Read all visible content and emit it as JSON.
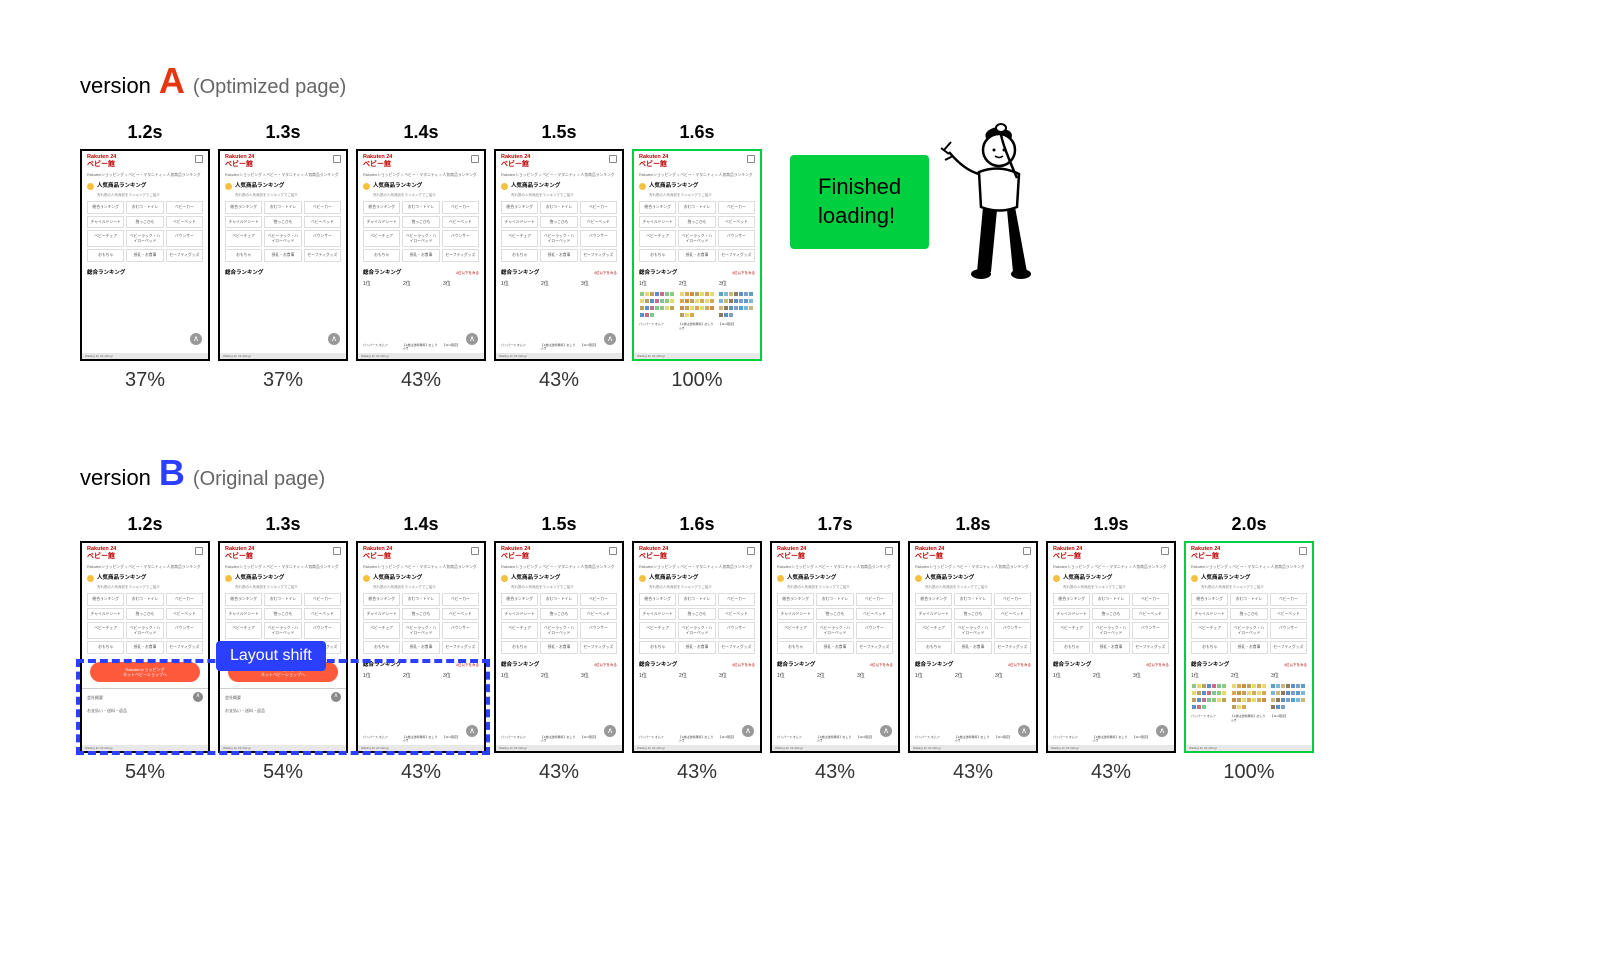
{
  "versionA": {
    "title_prefix": "version",
    "letter": "A",
    "letter_color": "#e63610",
    "suffix": "(Optimized page)",
    "frames": [
      {
        "time": "1.2s",
        "pct": "37%",
        "state": "partial1"
      },
      {
        "time": "1.3s",
        "pct": "37%",
        "state": "partial1"
      },
      {
        "time": "1.4s",
        "pct": "43%",
        "state": "partial2"
      },
      {
        "time": "1.5s",
        "pct": "43%",
        "state": "partial2"
      },
      {
        "time": "1.6s",
        "pct": "100%",
        "state": "complete"
      }
    ],
    "callout": "Finished\nloading!"
  },
  "versionB": {
    "title_prefix": "version",
    "letter": "B",
    "letter_color": "#2a3fff",
    "suffix": "(Original page)",
    "frames": [
      {
        "time": "1.2s",
        "pct": "54%",
        "state": "withbtn"
      },
      {
        "time": "1.3s",
        "pct": "54%",
        "state": "withbtn"
      },
      {
        "time": "1.4s",
        "pct": "43%",
        "state": "partial2"
      },
      {
        "time": "1.5s",
        "pct": "43%",
        "state": "partial2"
      },
      {
        "time": "1.6s",
        "pct": "43%",
        "state": "partial2"
      },
      {
        "time": "1.7s",
        "pct": "43%",
        "state": "partial2"
      },
      {
        "time": "1.8s",
        "pct": "43%",
        "state": "partial2"
      },
      {
        "time": "1.9s",
        "pct": "43%",
        "state": "partial2"
      },
      {
        "time": "2.0s",
        "pct": "100%",
        "state": "complete"
      }
    ],
    "layout_shift_label": "Layout shift"
  },
  "colors": {
    "complete_border": "#00d040",
    "callout_bg": "#00d040",
    "layout_shift": "#2a3fff",
    "rakuten_red": "#bf0000",
    "red_btn": "#ff5a3c"
  },
  "frame_content": {
    "logo_top": "Rakuten 24",
    "logo_sub": "ベビー館",
    "breadcrumb": "Rakutenショッピング > ベビー・マタニティ > 人気商品ランキング",
    "section_title": "人気商品ランキング",
    "section_sub": "売れ筋の人気商品をランキングでご紹介",
    "categories": [
      "総合ランキング",
      "おむつ・トイレ",
      "ベビーカー",
      "チャイルドシート",
      "抱っこひも",
      "ベビーベッド",
      "ベビーチェア",
      "ベビーラック・ハイローベッド",
      "バウンサー",
      "おもちゃ",
      "授乳・お食事",
      "セーフティグッズ"
    ],
    "rank_label": "総合ランキング",
    "rank_more": "4位以下をみる",
    "ranks": [
      "1位",
      "2位",
      "3位"
    ],
    "red_btn_line1": "Rakutenショッピング",
    "red_btn_line2": "ネットベビーショップへ",
    "footer_text": "会社概要",
    "footer_sub": "お支払い・送料・返品",
    "status": "Waiting for 24.rlidx.jp",
    "prod_text": [
      "パンパース オムツ",
      "【1枚は送料無料】おしりふき",
      "【11/1限定】"
    ],
    "product_colors": [
      [
        "#8fc97a",
        "#e8d870",
        "#bfa05a",
        "#5a8fc9",
        "#c96a8f",
        "#7ac98f"
      ],
      [
        "#e8d870",
        "#d8a850",
        "#c89040",
        "#bfa05a",
        "#e8d870",
        "#d8a850"
      ],
      [
        "#5a9fc9",
        "#7ab8d8",
        "#c9b87a",
        "#8f7a5a",
        "#5a8fc9",
        "#7a9fc9"
      ]
    ]
  }
}
